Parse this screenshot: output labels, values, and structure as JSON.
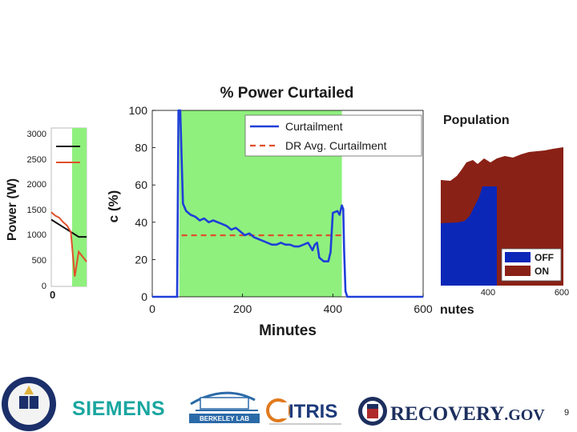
{
  "chart_data": [
    {
      "type": "line",
      "title": "% Power Curtailed",
      "xlabel": "Minutes",
      "ylabel": "c (%)",
      "xlim": [
        0,
        600
      ],
      "ylim": [
        0,
        100
      ],
      "xticks": [
        "0",
        "200",
        "400",
        "600"
      ],
      "yticks": [
        "0",
        "20",
        "40",
        "60",
        "80",
        "100"
      ],
      "shaded_region": [
        60,
        420
      ],
      "series": [
        {
          "name": "Curtailment",
          "color": "#1f3fd8",
          "x": [
            0,
            55,
            58,
            62,
            68,
            75,
            85,
            95,
            105,
            115,
            125,
            135,
            145,
            155,
            165,
            175,
            185,
            195,
            205,
            215,
            225,
            235,
            245,
            255,
            265,
            275,
            285,
            295,
            305,
            315,
            325,
            335,
            345,
            350,
            355,
            360,
            365,
            370,
            380,
            390,
            395,
            400,
            410,
            415,
            420,
            423,
            425,
            428,
            432,
            440,
            600
          ],
          "y": [
            0,
            0,
            100,
            100,
            50,
            46,
            44,
            43,
            41,
            42,
            40,
            41,
            40,
            39,
            38,
            36,
            37,
            35,
            33,
            34,
            32,
            31,
            30,
            29,
            28,
            28,
            29,
            28,
            28,
            27,
            27,
            28,
            29,
            27,
            25,
            28,
            29,
            21,
            19,
            19,
            24,
            45,
            46,
            44,
            49,
            47,
            25,
            3,
            0,
            0,
            0
          ]
        },
        {
          "name": "DR Avg. Curtailment",
          "color": "#e0502a",
          "x": [
            65,
            425
          ],
          "y": [
            33,
            33
          ]
        }
      ]
    },
    {
      "type": "line",
      "title": "",
      "xlabel": "",
      "ylabel": "Power (W)",
      "yticks": [
        "0",
        "500",
        "1000",
        "1500",
        "2000",
        "2500",
        "3000"
      ],
      "xticks": [
        "0"
      ],
      "ylim": [
        0,
        3200
      ],
      "series": [
        {
          "name": "",
          "color": "#111111",
          "y": [
            1350,
            1300,
            1250,
            1200,
            1150,
            1100,
            1050,
            1000,
            1000,
            1000
          ]
        },
        {
          "name": "",
          "color": "#e0502a",
          "y": [
            1500,
            1430,
            1390,
            1300,
            1230,
            1100,
            200,
            700,
            600,
            500
          ]
        }
      ]
    },
    {
      "type": "area",
      "title": "Population",
      "xlabel": "nutes",
      "xticks": [
        "400",
        "600"
      ],
      "legend": [
        "OFF",
        "ON"
      ],
      "colors": {
        "OFF": "#0b27b8",
        "ON": "#8a2116"
      }
    }
  ],
  "footer": {
    "logos": [
      "UC seal",
      "SIEMENS",
      "BERKELEY LAB",
      "CITRIS",
      "RECOVERY.GOV"
    ],
    "siemens": "SIEMENS",
    "berkeley": "BERKELEY LAB",
    "citris": "ITRIS",
    "recovery_main": "RECOVERY",
    "recovery_suffix": ".GOV",
    "page_number": "9"
  },
  "colors": {
    "green": "#8ff07e",
    "blue": "#1f3fd8",
    "red": "#e0502a",
    "dark_red": "#8a2116",
    "dark_blue": "#0b27b8"
  }
}
